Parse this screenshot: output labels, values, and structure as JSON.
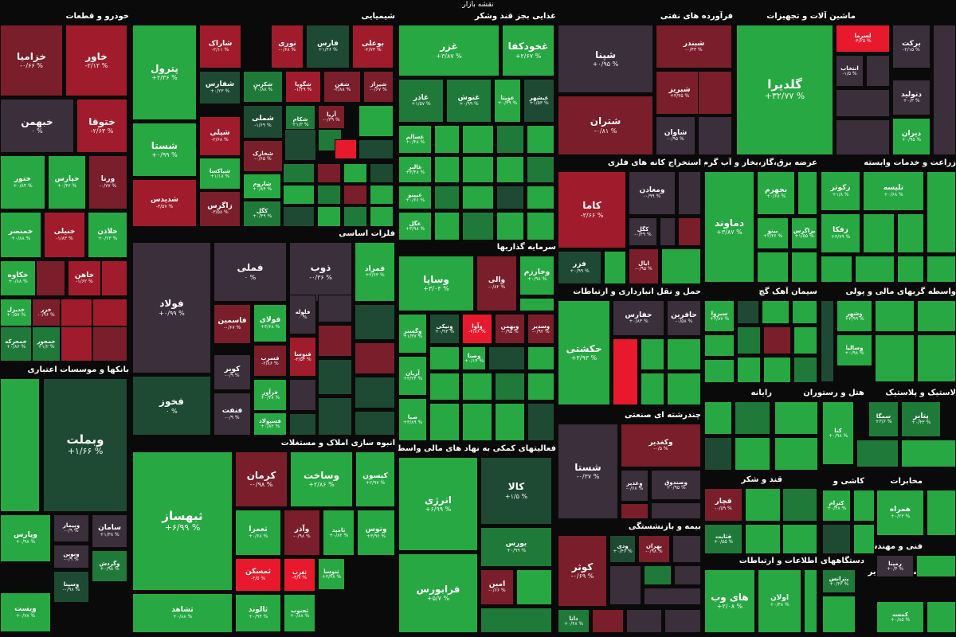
{
  "colors": {
    "G": "#27a843",
    "g": "#1f7a3a",
    "d": "#1e4a33",
    "n": "#3a2f3a",
    "r": "#7a1e2b",
    "R": "#a01c2c",
    "B": "#e8192c"
  },
  "map_title": "نقشه بازار",
  "sections": [
    {
      "id": "khodro",
      "title": "خودرو و قطعات"
    },
    {
      "id": "shimiai",
      "title": "شیمیایی"
    },
    {
      "id": "ghazaei",
      "title": "غذایی بجز قند وشکر"
    },
    {
      "id": "faravarde",
      "title": "فرآورده های نفتی"
    },
    {
      "id": "mashin",
      "title": "ماشین آلات و تجهیزات"
    },
    {
      "id": "felezat",
      "title": "فلزات اساسی"
    },
    {
      "id": "sarmaye",
      "title": "سرمایه گذاریها"
    },
    {
      "id": "estekhraj_felzi",
      "title": "استخراج کانه های فلزی"
    },
    {
      "id": "bargh",
      "title": "عرضه برق،گاز،بخار و آب گرم"
    },
    {
      "id": "zeraat",
      "title": "زراعت و خدمات وابسته"
    },
    {
      "id": "haml",
      "title": "حمل و نقل انبارداری و ارتباطات"
    },
    {
      "id": "siman",
      "title": "سیمان آهک گچ"
    },
    {
      "id": "vasete",
      "title": "واسطه گریهای مالی و پولی"
    },
    {
      "id": "bank",
      "title": "بانکها و موسسات اعتباری"
    },
    {
      "id": "anboh",
      "title": "انبوه سازی املاک و مستغلات"
    },
    {
      "id": "faaliat",
      "title": "فعالیتهای کمکی به نهاد های مالی واسط"
    },
    {
      "id": "chandreshte",
      "title": "چندرشته ای صنعتی"
    },
    {
      "id": "rayane",
      "title": "رایانه"
    },
    {
      "id": "hotel",
      "title": "هتل و رستوران"
    },
    {
      "id": "lastik",
      "title": "لاستیک و پلاستیک"
    },
    {
      "id": "ghand",
      "title": "قند و شکر"
    },
    {
      "id": "kashi",
      "title": "کاشی و"
    },
    {
      "id": "mokhaberat",
      "title": "مخابرات"
    },
    {
      "id": "bime",
      "title": "بیمه و بازنشستگی"
    },
    {
      "id": "fanni",
      "title": "فنی و مهندسی"
    },
    {
      "id": "ettelaat",
      "title": "اطلاعات و ارتباطات"
    },
    {
      "id": "dastgah",
      "title": "دستگاههای"
    },
    {
      "id": "estekhraj_sayer",
      "title": "استخراج سایر"
    }
  ],
  "tiles": [
    {
      "id": "khodro-khazamia",
      "name": "خزامیا",
      "change": "-۰/۶۶ %"
    },
    {
      "id": "khodro-khavar",
      "name": "خاور",
      "change": "-۲/۱۲ %"
    },
    {
      "id": "khodro-khbahman",
      "name": "خبهمن",
      "change": "۰ %"
    },
    {
      "id": "khodro-khtoga",
      "name": "ختوقا",
      "change": "-۲/۶۳ %"
    },
    {
      "id": "khodro-khtor",
      "name": "ختور",
      "change": "+۰/۸۴ %"
    },
    {
      "id": "khodro-kharis",
      "name": "خپارس",
      "change": "+۰/۴۶ %"
    },
    {
      "id": "khodro-vrena",
      "name": "ورنا",
      "change": "-۰/۷۷ %"
    },
    {
      "id": "khodro-khensar",
      "name": "خمنصر",
      "change": "+۰/۸۸ %"
    },
    {
      "id": "khodro-khmehvar",
      "name": "خنیلی",
      "change": "-۱/۸۳ %"
    },
    {
      "id": "khodro-khazin",
      "name": "خلاذن",
      "change": "+۰/۲۳ %"
    },
    {
      "id": "khodro-khkav",
      "name": "خکاوه",
      "change": "+۰/۸۸ %"
    },
    {
      "id": "khodro-khahan",
      "name": "خاهن",
      "change": "-۱/۶۲ %"
    },
    {
      "id": "khodro-khdizel",
      "name": "خدیزل",
      "change": "+۰/۵۷ %"
    },
    {
      "id": "khodro-khzar",
      "name": "خزر",
      "change": "-۰/۹۶ %"
    },
    {
      "id": "khodro-khamehr",
      "name": "خمحرکه",
      "change": "+۰/۸۶ %"
    },
    {
      "id": "khodro-khmoor",
      "name": "خمحور",
      "change": "+۱/۲ %"
    },
    {
      "id": "shimi-petrol",
      "name": "پترول",
      "change": "+۲/۳۶ %"
    },
    {
      "id": "shimi-sharak",
      "name": "شاراک",
      "change": "-۲/۱۱ %"
    },
    {
      "id": "shimi-nouri",
      "name": "نوری",
      "change": "-۰/۶۸ %"
    },
    {
      "id": "shimi-fars",
      "name": "فارس",
      "change": "+۱/۴۶ %"
    },
    {
      "id": "shimi-bouali",
      "name": "بوعلی",
      "change": "-۲/۷۳ %"
    },
    {
      "id": "shimi-shafaras",
      "name": "شفارس",
      "change": "+۰/۲۳ %"
    },
    {
      "id": "shimi-shekarn",
      "name": "شکربن",
      "change": "+۰/۸۸ %"
    },
    {
      "id": "shimi-shegovia",
      "name": "شگویا",
      "change": "-۱/۲۹ %"
    },
    {
      "id": "shimi-shafan",
      "name": "شفن",
      "change": "-۲/۸۸ %"
    },
    {
      "id": "shimi-shiraz",
      "name": "شیراز",
      "change": "-۰/۶۷ %"
    },
    {
      "id": "shimi-shesta",
      "name": "شستا",
      "change": "+۰/۹۹ %"
    },
    {
      "id": "shimi-shemli",
      "name": "شملی",
      "change": "-۱/۶۹ %"
    },
    {
      "id": "shimi-shekam",
      "name": "شکام",
      "change": "+۱/۳ %"
    },
    {
      "id": "shimi-arya",
      "name": "آریا",
      "change": "-۰/۳۹ %"
    },
    {
      "id": "shimi-sheli",
      "name": "شپلی",
      "change": "-۲/۶۸ %"
    },
    {
      "id": "shimi-shkharak",
      "name": "شخارک",
      "change": "-۰/۶۵ %"
    },
    {
      "id": "shimi-shebandar",
      "name": "شپاکسا",
      "change": "+۱/۱۸ %"
    },
    {
      "id": "shimi-sharom",
      "name": "شاروم",
      "change": "+۰/۸۴ %"
    },
    {
      "id": "shimi-shdides",
      "name": "شدیدس",
      "change": "-۳/۵۷ %"
    },
    {
      "id": "shimi-zagros",
      "name": "زاگرس",
      "change": "-۳/۵۸ %"
    },
    {
      "id": "shimi-kala",
      "name": "کگل",
      "change": "+۰/۴۹ %"
    },
    {
      "id": "ghaza-ghazr",
      "name": "غزر",
      "change": "+۳/۸۷ %"
    },
    {
      "id": "ghaza-khodkafa",
      "name": "غخودکفا",
      "change": "+۲/۶۷ %"
    },
    {
      "id": "ghaza-ghadir",
      "name": "غاذر",
      "change": "+۱/۵۷ %"
    },
    {
      "id": "ghaza-ghnoosh",
      "name": "غنوش",
      "change": "+۰/۹۹ %"
    },
    {
      "id": "ghaza-ghorta",
      "name": "غویتا",
      "change": "+۰/۳۹ %"
    },
    {
      "id": "ghaza-ghbeshahr",
      "name": "غبشهر",
      "change": "+۱/۵۳ %"
    },
    {
      "id": "ghaza-ghsalam",
      "name": "غسالم",
      "change": "+۰/۴۸ %"
    },
    {
      "id": "ghaza-ghalbr",
      "name": "غالبر",
      "change": "+۳/۴۸ %"
    },
    {
      "id": "ghaza-ghbino",
      "name": "غبینو",
      "change": "+۰/۶۶ %"
    },
    {
      "id": "ghaza-ghgol",
      "name": "غگل",
      "change": "+۳/۹۸ %"
    },
    {
      "id": "naft-shepna",
      "name": "شپنا",
      "change": "+۰/۹۵ %"
    },
    {
      "id": "naft-shbandar",
      "name": "شبندر",
      "change": "-۰/۴۳ %"
    },
    {
      "id": "naft-shbriz",
      "name": "شبریز",
      "change": "+۳/۳۵ %"
    },
    {
      "id": "naft-shetran",
      "name": "شتران",
      "change": "-۰/۸۱ %"
    },
    {
      "id": "naft-shavan",
      "name": "شاوان",
      "change": "-۰/۹۵ %"
    },
    {
      "id": "mashin-gledira",
      "name": "گلدیرا",
      "change": "+۳۲/۷۷ %"
    },
    {
      "id": "mashin-lsarma",
      "name": "لسرما",
      "change": "-۴/۲۵ %"
    },
    {
      "id": "mashin-barkat",
      "name": "برکت",
      "change": "-۲/۱۵ %"
    },
    {
      "id": "mashin-entekhab",
      "name": "انتخاب",
      "change": "-۱/۵ %"
    },
    {
      "id": "mashin-davolid",
      "name": "دتولید",
      "change": "+۰/۳ %"
    },
    {
      "id": "mashin-diran",
      "name": "دیران",
      "change": "+۰/۹۵ %"
    },
    {
      "id": "felez-foolad",
      "name": "فولاد",
      "change": "+۰/۹۹ %"
    },
    {
      "id": "felez-femli",
      "name": "فملی",
      "change": "۰ %"
    },
    {
      "id": "felez-zob",
      "name": "ذوب",
      "change": "-۰/۳۶ %"
    },
    {
      "id": "felez-famrad",
      "name": "فمراد",
      "change": "+۲/۶۳ %"
    },
    {
      "id": "felez-fkhooz",
      "name": "فخوز",
      "change": "۰ %"
    },
    {
      "id": "felez-famesmin",
      "name": "فاسمین",
      "change": "-۰/۶۷ %"
    },
    {
      "id": "felez-fooladi",
      "name": "فولای",
      "change": "+۳/۶۸ %"
    },
    {
      "id": "felez-flooleh",
      "name": "فلوله",
      "change": "۰ %"
    },
    {
      "id": "felez-fesrab",
      "name": "فسرب",
      "change": "-۲/۸۶ %"
    },
    {
      "id": "felez-fnoosa",
      "name": "فنوسا",
      "change": "-۳/۵۴ %"
    },
    {
      "id": "felez-kovir",
      "name": "کویر",
      "change": "-۰/۹ %"
    },
    {
      "id": "felez-faravar",
      "name": "فرآور",
      "change": "+۰/۴۸ %"
    },
    {
      "id": "felez-fenget",
      "name": "فنفت",
      "change": "-۰/۹ %"
    },
    {
      "id": "felez-fesepolad",
      "name": "فسپولاد",
      "change": "+۰/۸۲ %"
    },
    {
      "id": "sarm-vasapa",
      "name": "وساپا",
      "change": "+۳/۰۴ %"
    },
    {
      "id": "sarm-vani",
      "name": "والی",
      "change": "-۰/۸۲ %"
    },
    {
      "id": "sarm-vkharazm",
      "name": "وخارزم",
      "change": "+۰/۹۸ %"
    },
    {
      "id": "sarm-vgostar",
      "name": "وگستر",
      "change": "+۱/۳۷ %"
    },
    {
      "id": "sarm-vnik",
      "name": "ونیکی",
      "change": "+۰/۹۳ %"
    },
    {
      "id": "sarm-vavo",
      "name": "وآوا",
      "change": "-۲/۸۶ %"
    },
    {
      "id": "sarm-vbahman",
      "name": "وبهمن",
      "change": "-۰/۹۵ %"
    },
    {
      "id": "sarm-vsadir",
      "name": "وسدیر",
      "change": "-۰/۹۲ %"
    },
    {
      "id": "sarm-vasna",
      "name": "وصنا",
      "change": "+۰/۱۴ %"
    },
    {
      "id": "sarm-aryan",
      "name": "آریان",
      "change": "+۳/۲۴ %"
    },
    {
      "id": "sarm-saba",
      "name": "صبا",
      "change": "+۳/۸۹ %"
    },
    {
      "id": "felzi-kama",
      "name": "کاما",
      "change": "-۳/۶۶ %"
    },
    {
      "id": "felzi-vamaadan",
      "name": "ومعادن",
      "change": "-۰/۹۹ %"
    },
    {
      "id": "felzi-kgol",
      "name": "کگل",
      "change": "-۰/۴۹ %"
    },
    {
      "id": "felzi-kfar",
      "name": "فزر",
      "change": "+۰/۹۹ %"
    },
    {
      "id": "felzi-kayal",
      "name": "ایال",
      "change": "-۰/۹۵ %"
    },
    {
      "id": "bargh-bahman",
      "name": "بجهرم",
      "change": "+۰/۶۸ %"
    },
    {
      "id": "bargh-damavand",
      "name": "دماوند",
      "change": "+۳/۸۷ %"
    },
    {
      "id": "bargh-bineva",
      "name": "بینو",
      "change": "+۲/۳۶ %"
    },
    {
      "id": "bargh-bzagros",
      "name": "بزاگرس",
      "change": "+۱/۵۵ %"
    },
    {
      "id": "zeraat-zkosar",
      "name": "زکوثر",
      "change": "+۱/۸ %"
    },
    {
      "id": "zeraat-talisa",
      "name": "تلیسه",
      "change": "+۰/۶۸ %"
    },
    {
      "id": "zeraat-zagha",
      "name": "زفکا",
      "change": "+۳/۷۹ %"
    },
    {
      "id": "haml-hkeshti",
      "name": "حکشتی",
      "change": "+۳/۹۳ %"
    },
    {
      "id": "haml-hfaras",
      "name": "حفارس",
      "change": "+۰/۸۳ %"
    },
    {
      "id": "haml-hafarin",
      "name": "حافرین",
      "change": "-۰/۵۸ %"
    },
    {
      "id": "siman-sebzva",
      "name": "سبزوا",
      "change": "+۳/۸۷ %"
    },
    {
      "id": "vasete-vashahr",
      "name": "وشهر",
      "change": "+۳/۹۹ %"
    },
    {
      "id": "vasete-vasalia",
      "name": "وسالیا",
      "change": "+۰/۹۸ %"
    },
    {
      "id": "bank-vebmellat",
      "name": "وبملت",
      "change": "+۱/۶۶ %"
    },
    {
      "id": "bank-vepars",
      "name": "وپارس",
      "change": "+۰/۹۸ %"
    },
    {
      "id": "bank-vebimar",
      "name": "وبیمار",
      "change": "-۰/۹ %"
    },
    {
      "id": "bank-saman",
      "name": "سامان",
      "change": "+۱/۳۸ %"
    },
    {
      "id": "bank-venovin",
      "name": "ونوین",
      "change": "-۰/۹ %"
    },
    {
      "id": "bank-vgardesh",
      "name": "وگردش",
      "change": "+۰/۹۸ %"
    },
    {
      "id": "bank-vesina",
      "name": "وسینا",
      "change": "-۰/۹۸ %"
    },
    {
      "id": "bank-vest",
      "name": "ویست",
      "change": "+۰/۷۸ %"
    },
    {
      "id": "anboh-tbahsaz",
      "name": "ثبهساز",
      "change": "+۶/۹۹ %"
    },
    {
      "id": "anboh-kerman",
      "name": "کرمان",
      "change": "-۰/۹۸ %"
    },
    {
      "id": "anboh-vsakht",
      "name": "وساخت",
      "change": "+۲/۸۶ %"
    },
    {
      "id": "anboh-kisoon",
      "name": "کیسون",
      "change": "+۲/۹۷ %"
    },
    {
      "id": "anboh-tamra",
      "name": "ثعمرا",
      "change": "+۰/۶۸ %"
    },
    {
      "id": "anboh-vazar",
      "name": "وآذر",
      "change": "-۰/۹۸ %"
    },
    {
      "id": "anboh-tamid",
      "name": "ثامید",
      "change": "+۰/۸۲ %"
    },
    {
      "id": "anboh-vtoos",
      "name": "وتوس",
      "change": "+۳/۹۶ %"
    },
    {
      "id": "anboh-tmaskan",
      "name": "ثمسکن",
      "change": "-۴/۵ %"
    },
    {
      "id": "anboh-tgharb",
      "name": "ثغرب",
      "change": "-۴/۷ %"
    },
    {
      "id": "anboh-tnoosa",
      "name": "ثنوسا",
      "change": "+۳/۴۸ %"
    },
    {
      "id": "anboh-tshahed",
      "name": "ثشاهد",
      "change": "+۰/۸۸ %"
    },
    {
      "id": "anboh-talvand",
      "name": "ثالوند",
      "change": "+۰/۹۴ %"
    },
    {
      "id": "anboh-tjnoob",
      "name": "ثجنوب",
      "change": "+۰/۸۸ %"
    },
    {
      "id": "faal-energy",
      "name": "انرژی",
      "change": "+۶/۹۹ %"
    },
    {
      "id": "faal-kala",
      "name": "کالا",
      "change": "+۱/۵ %"
    },
    {
      "id": "faal-boors",
      "name": "بورس",
      "change": "+۰/۹۹ %"
    },
    {
      "id": "faal-faraboors",
      "name": "فرابورس",
      "change": "+۵/۷ %"
    },
    {
      "id": "faal-amin",
      "name": "امین",
      "change": "-۰/۶۶ %"
    },
    {
      "id": "chand-vkadbir",
      "name": "وکغدیر",
      "change": "-۰/۵ %"
    },
    {
      "id": "chand-shasta",
      "name": "شستا",
      "change": "-۰/۳۷ %"
    },
    {
      "id": "chand-vsandoogh",
      "name": "وصندوق",
      "change": "+۰/۹۵ %"
    },
    {
      "id": "chand-vghadir",
      "name": "وغدیر",
      "change": "-۰/۶۸ %"
    },
    {
      "id": "rayane-sandoogh",
      "name": "سمگا",
      "change": "+۳/۶ %"
    },
    {
      "id": "rayane-kaspian",
      "name": "کنا",
      "change": "+۰/۹۸ %"
    },
    {
      "id": "lastik-petair",
      "name": "پتایر",
      "change": "+۰/۴۳ %"
    },
    {
      "id": "ghand-ghchar",
      "name": "قچار",
      "change": "-۰/۵۹ %"
    },
    {
      "id": "ghand-ghtabit",
      "name": "قثابت",
      "change": "+۰/۵۵ %"
    },
    {
      "id": "kashi-kram",
      "name": "کترام",
      "change": "+۰/۴۸ %"
    },
    {
      "id": "mokh-hamrah",
      "name": "همراه",
      "change": "+۰/۲۳ %"
    },
    {
      "id": "bime-vdey",
      "name": "ودی",
      "change": "+۰/۴۶ %"
    },
    {
      "id": "bime-vbahran",
      "name": "بهران",
      "change": "-۰/۹۸ %"
    },
    {
      "id": "bime-kosar",
      "name": "کوثر",
      "change": "-۰/۶۹ %"
    },
    {
      "id": "bime-dana",
      "name": "دانا",
      "change": "+۰/۴۸ %"
    },
    {
      "id": "fanni-rempa",
      "name": "رمپنا",
      "change": "+۰/۴ %"
    },
    {
      "id": "ett-haweb",
      "name": "های وب",
      "change": "+۲/۰۸ %"
    },
    {
      "id": "ett-lavan",
      "name": "اولان",
      "change": "+۰/۴۸ %"
    },
    {
      "id": "dast-btransa",
      "name": "بترانس",
      "change": "+۰/۴۳ %"
    },
    {
      "id": "sayer-kamsa",
      "name": "کمسه",
      "change": "+۰/۸۵ %"
    }
  ]
}
